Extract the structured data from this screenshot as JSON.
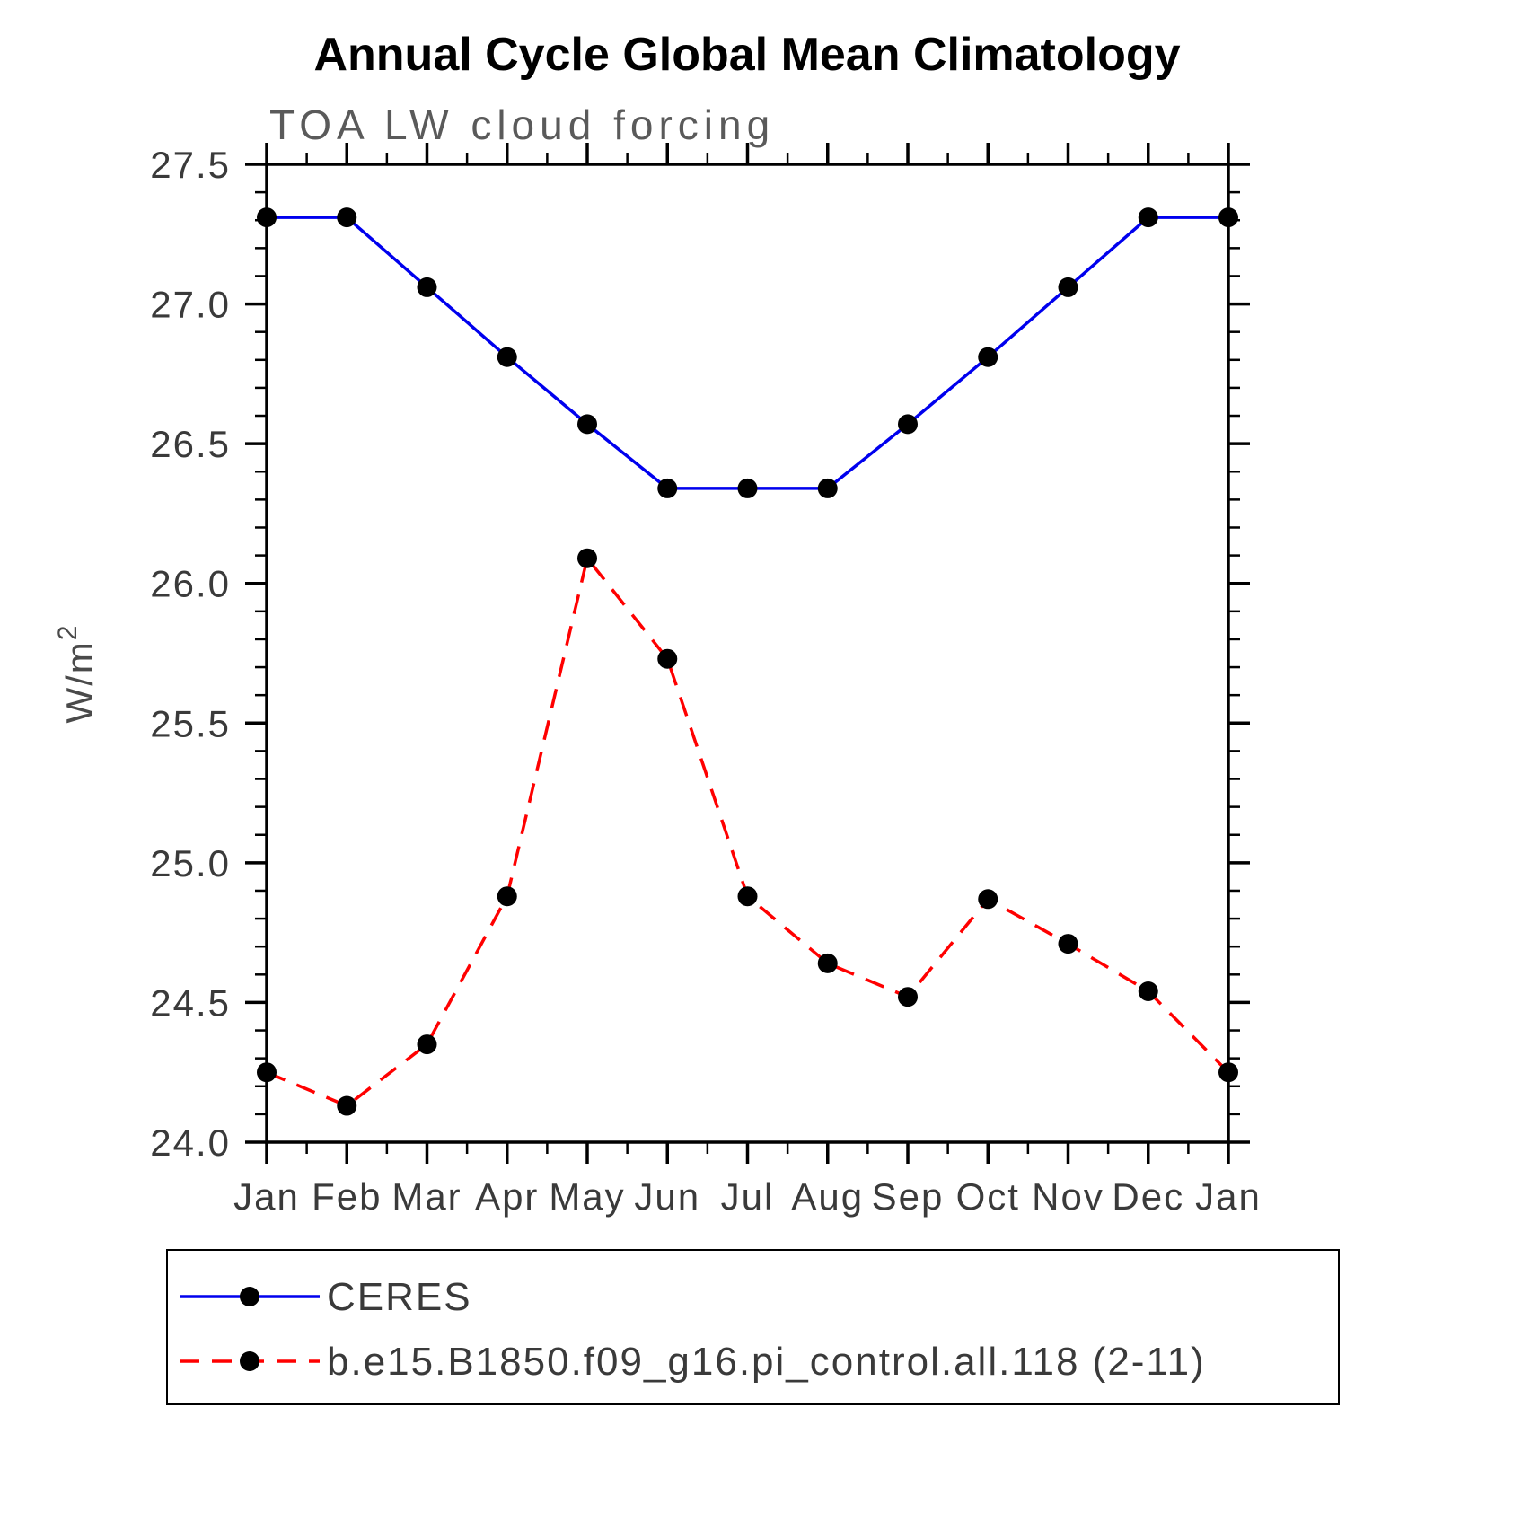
{
  "chart_data": {
    "type": "line",
    "title": "Annual Cycle Global Mean Climatology",
    "subtitle": "TOA LW cloud forcing",
    "ylabel_base": "W/m",
    "ylabel_exp": "2",
    "categories": [
      "Jan",
      "Feb",
      "Mar",
      "Apr",
      "May",
      "Jun",
      "Jul",
      "Aug",
      "Sep",
      "Oct",
      "Nov",
      "Dec",
      "Jan"
    ],
    "series": [
      {
        "name": "CERES",
        "color": "#0000ee",
        "line_style": "solid",
        "values": [
          27.31,
          27.31,
          27.06,
          26.81,
          26.57,
          26.34,
          26.34,
          26.34,
          26.57,
          26.81,
          27.06,
          27.31,
          27.31
        ]
      },
      {
        "name": "b.e15.B1850.f09_g16.pi_control.all.118 (2-11)",
        "color": "#ff0000",
        "line_style": "dashed",
        "values": [
          24.25,
          24.13,
          24.35,
          24.88,
          26.09,
          25.73,
          24.88,
          24.64,
          24.52,
          24.87,
          24.71,
          24.54,
          24.25
        ]
      }
    ],
    "ylim": [
      24.0,
      27.5
    ],
    "ytick_labels": [
      "24.0",
      "24.5",
      "25.0",
      "25.5",
      "26.0",
      "26.5",
      "27.0",
      "27.5"
    ],
    "ytick_minor_step": 0.1,
    "marker_color": "#000000",
    "frame_color": "#000000",
    "grid": "off",
    "legend_position": "bottom-left"
  }
}
